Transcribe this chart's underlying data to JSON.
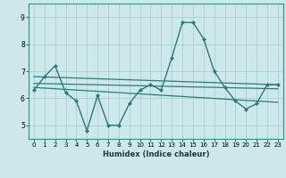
{
  "xlabel": "Humidex (Indice chaleur)",
  "ylabel": "",
  "xlim": [
    -0.5,
    23.5
  ],
  "ylim": [
    4.5,
    9.5
  ],
  "yticks": [
    5,
    6,
    7,
    8,
    9
  ],
  "xticks": [
    0,
    1,
    2,
    3,
    4,
    5,
    6,
    7,
    8,
    9,
    10,
    11,
    12,
    13,
    14,
    15,
    16,
    17,
    18,
    19,
    20,
    21,
    22,
    23
  ],
  "bg_color": "#cce8ea",
  "grid_color": "#aacfd4",
  "line_color": "#2d7a7a",
  "main_line": {
    "x": [
      0,
      1,
      2,
      3,
      4,
      5,
      6,
      7,
      8,
      9,
      10,
      11,
      12,
      13,
      14,
      15,
      16,
      17,
      18,
      19,
      20,
      21,
      22,
      23
    ],
    "y": [
      6.3,
      6.8,
      7.2,
      6.2,
      5.9,
      4.8,
      6.1,
      5.0,
      5.0,
      5.8,
      6.3,
      6.5,
      6.3,
      7.5,
      8.8,
      8.8,
      8.2,
      7.0,
      6.4,
      5.9,
      5.6,
      5.8,
      6.5,
      6.5
    ]
  },
  "trend_lines": [
    {
      "x": [
        0,
        23
      ],
      "y": [
        6.8,
        6.5
      ]
    },
    {
      "x": [
        0,
        23
      ],
      "y": [
        6.55,
        6.35
      ]
    },
    {
      "x": [
        0,
        23
      ],
      "y": [
        6.4,
        5.85
      ]
    }
  ]
}
